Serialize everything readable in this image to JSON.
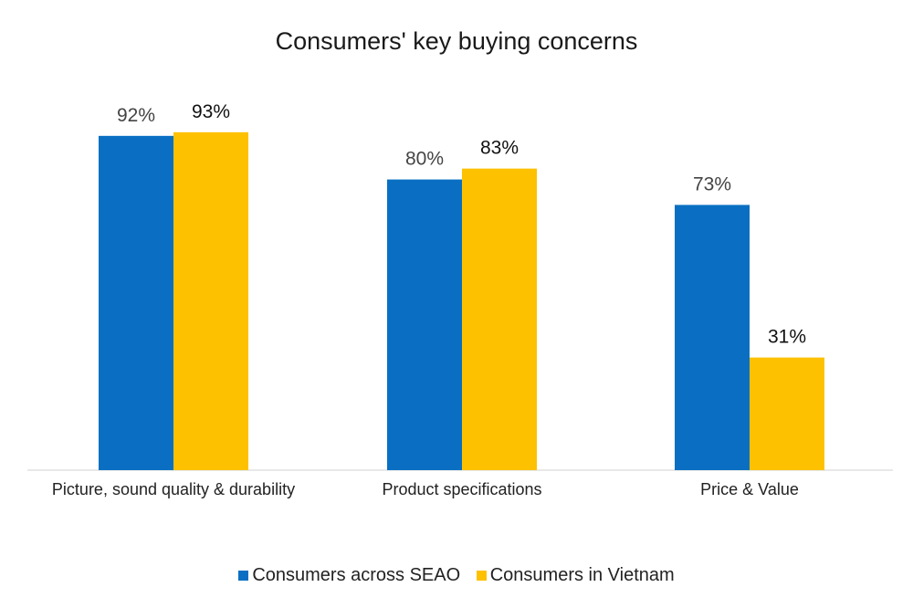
{
  "chart_data": {
    "type": "bar",
    "title": "Consumers' key buying concerns",
    "categories": [
      "Picture, sound quality & durability",
      "Product specifications",
      "Price & Value"
    ],
    "series": [
      {
        "name": "Consumers across SEAO",
        "color": "#0A6FC2",
        "values": [
          92,
          80,
          73
        ],
        "labels": [
          "92%",
          "80%",
          "73%"
        ]
      },
      {
        "name": "Consumers in Vietnam",
        "color": "#FDC100",
        "values": [
          93,
          83,
          31
        ],
        "labels": [
          "93%",
          "83%",
          "31%"
        ]
      }
    ],
    "xlabel": "",
    "ylabel": "",
    "grid": false,
    "legend": "bottom"
  }
}
